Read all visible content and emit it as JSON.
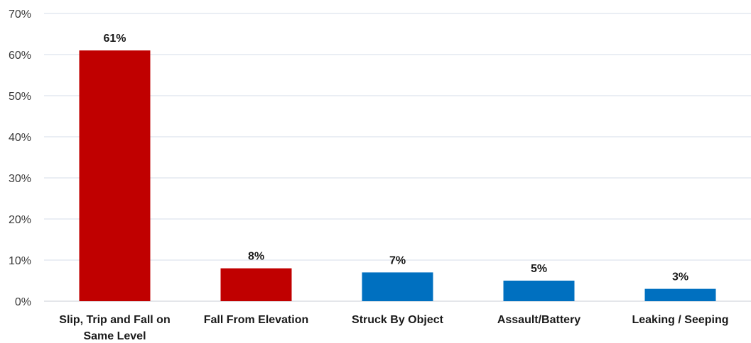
{
  "chart_data": {
    "type": "bar",
    "title": "",
    "xlabel": "",
    "ylabel": "",
    "categories": [
      [
        "Slip, Trip and Fall on",
        "Same Level"
      ],
      [
        "Fall From Elevation"
      ],
      [
        "Struck By Object"
      ],
      [
        "Assault/Battery"
      ],
      [
        "Leaking / Seeping"
      ]
    ],
    "values": [
      61,
      8,
      7,
      5,
      3
    ],
    "data_labels": [
      "61%",
      "8%",
      "7%",
      "5%",
      "3%"
    ],
    "bar_colors": [
      "#c00000",
      "#c00000",
      "#0070c0",
      "#0070c0",
      "#0070c0"
    ],
    "ylim": [
      0,
      70
    ],
    "yticks": [
      0,
      10,
      20,
      30,
      40,
      50,
      60,
      70
    ],
    "ytick_labels": [
      "0%",
      "10%",
      "20%",
      "30%",
      "40%",
      "50%",
      "60%",
      "70%"
    ],
    "grid": true,
    "legend": "none"
  }
}
